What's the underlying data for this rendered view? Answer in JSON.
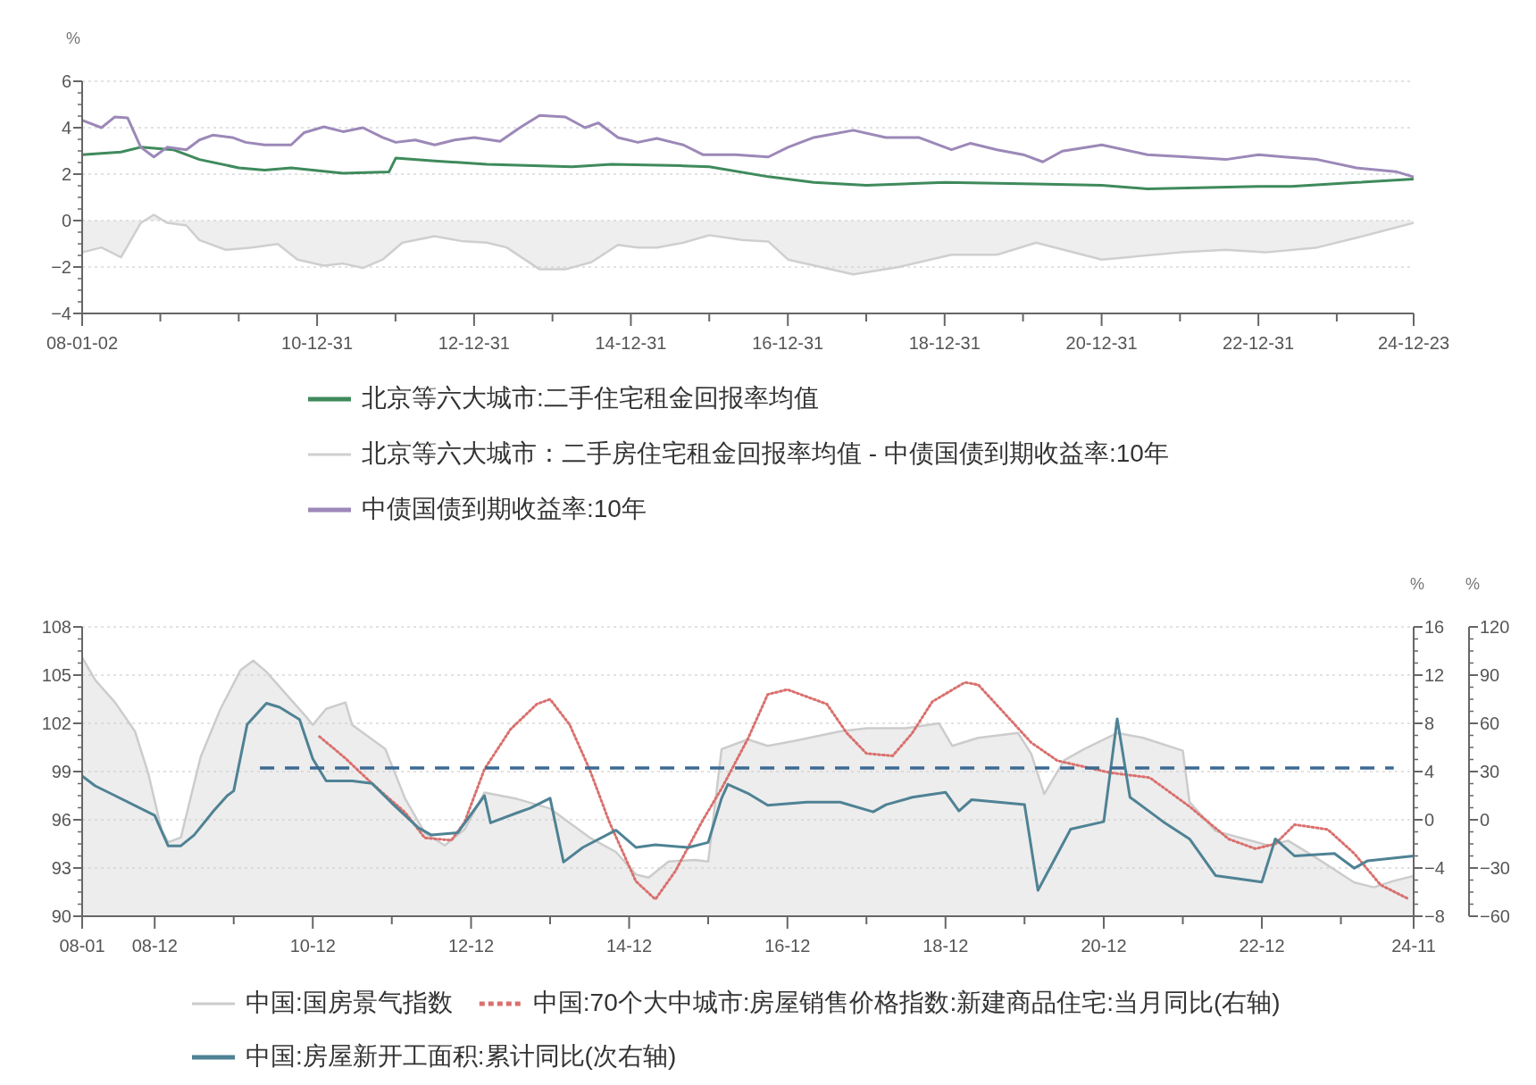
{
  "chart_data": [
    {
      "type": "line",
      "ylabel": "%",
      "xlim": [
        "2008-01-02",
        "2024-12-23"
      ],
      "xticks": [
        {
          "value": "2008-01-02",
          "label": "08-01-02"
        },
        {
          "value": "2008-12-31",
          "label": null
        },
        {
          "value": "2009-12-31",
          "label": null
        },
        {
          "value": "2010-12-31",
          "label": "10-12-31"
        },
        {
          "value": "2011-12-31",
          "label": null
        },
        {
          "value": "2012-12-31",
          "label": "12-12-31"
        },
        {
          "value": "2013-12-31",
          "label": null
        },
        {
          "value": "2014-12-31",
          "label": "14-12-31"
        },
        {
          "value": "2015-12-31",
          "label": null
        },
        {
          "value": "2016-12-31",
          "label": "16-12-31"
        },
        {
          "value": "2017-12-31",
          "label": null
        },
        {
          "value": "2018-12-31",
          "label": "18-12-31"
        },
        {
          "value": "2019-12-31",
          "label": null
        },
        {
          "value": "2020-12-31",
          "label": "20-12-31"
        },
        {
          "value": "2021-12-31",
          "label": null
        },
        {
          "value": "2022-12-31",
          "label": "22-12-31"
        },
        {
          "value": "2023-12-31",
          "label": null
        },
        {
          "value": "2024-12-23",
          "label": "24-12-23"
        }
      ],
      "ylim": [
        -4,
        6
      ],
      "yticks": [
        -4,
        -2,
        0,
        2,
        4,
        6
      ],
      "grid": "y",
      "legend": "bottom",
      "series": [
        {
          "name": "北京等六大城市:二手住宅租金回报率均值",
          "color": "#3f8a5c",
          "x": [
            "2008-01-02",
            "2008-07",
            "2008-10",
            "2009-03",
            "2009-07",
            "2010-01",
            "2010-05",
            "2010-09",
            "2011-05",
            "2011-12",
            "2012-01",
            "2012-07",
            "2013-03",
            "2014-04",
            "2014-10",
            "2015-09",
            "2016-01",
            "2016-10",
            "2017-05",
            "2018-01",
            "2019-01",
            "2020-03",
            "2021-01",
            "2021-08",
            "2023-01",
            "2023-06",
            "2024-04",
            "2024-12-23"
          ],
          "values": [
            2.84,
            2.95,
            3.16,
            3.05,
            2.63,
            2.27,
            2.17,
            2.27,
            2.04,
            2.1,
            2.69,
            2.57,
            2.42,
            2.32,
            2.42,
            2.36,
            2.32,
            1.89,
            1.64,
            1.52,
            1.64,
            1.58,
            1.52,
            1.37,
            1.47,
            1.47,
            1.64,
            1.79
          ]
        },
        {
          "name": "北京等六大城市：二手房住宅租金回报率均值 - 中债国债到期收益率:10年",
          "type": "area",
          "color": "#cfcfcf",
          "x": [
            "2008-01-02",
            "2008-04",
            "2008-07",
            "2008-10",
            "2008-12",
            "2009-02",
            "2009-05",
            "2009-07",
            "2009-11",
            "2010-03",
            "2010-07",
            "2010-10",
            "2011-02",
            "2011-05",
            "2011-08",
            "2011-11",
            "2012-02",
            "2012-07",
            "2012-11",
            "2013-03",
            "2013-06",
            "2013-11",
            "2014-03",
            "2014-07",
            "2014-11",
            "2015-02",
            "2015-05",
            "2015-09",
            "2016-01",
            "2016-06",
            "2016-10",
            "2017-01",
            "2017-11",
            "2018-06",
            "2019-02",
            "2019-09",
            "2020-03",
            "2021-01",
            "2022-01",
            "2022-08",
            "2023-02",
            "2023-10",
            "2024-04",
            "2024-12-23"
          ],
          "values": [
            -1.37,
            -1.16,
            -1.58,
            -0.1,
            0.25,
            -0.1,
            -0.21,
            -0.84,
            -1.26,
            -1.16,
            -1.01,
            -1.68,
            -1.94,
            -1.85,
            -2.04,
            -1.68,
            -0.95,
            -0.67,
            -0.88,
            -0.95,
            -1.16,
            -2.1,
            -2.1,
            -1.79,
            -1.05,
            -1.16,
            -1.16,
            -0.95,
            -0.63,
            -0.84,
            -0.9,
            -1.68,
            -2.32,
            -2.0,
            -1.47,
            -1.47,
            -0.95,
            -1.68,
            -1.37,
            -1.26,
            -1.37,
            -1.16,
            -0.74,
            -0.1
          ]
        },
        {
          "name": "中债国债到期收益率:10年",
          "color": "#9c88b8",
          "x": [
            "2008-01-02",
            "2008-04",
            "2008-06",
            "2008-08",
            "2008-10",
            "2008-12",
            "2009-02",
            "2009-05",
            "2009-07",
            "2009-09",
            "2009-12",
            "2010-02",
            "2010-05",
            "2010-09",
            "2010-11",
            "2011-02",
            "2011-05",
            "2011-08",
            "2011-11",
            "2012-01",
            "2012-04",
            "2012-07",
            "2012-10",
            "2013-01",
            "2013-05",
            "2013-08",
            "2013-11",
            "2014-03",
            "2014-06",
            "2014-08",
            "2014-11",
            "2015-02",
            "2015-05",
            "2015-09",
            "2015-12",
            "2016-05",
            "2016-10",
            "2017-01",
            "2017-05",
            "2017-11",
            "2018-04",
            "2018-09",
            "2019-02",
            "2019-05",
            "2019-09",
            "2020-01",
            "2020-04",
            "2020-07",
            "2021-01",
            "2021-08",
            "2022-02",
            "2022-08",
            "2023-01",
            "2023-05",
            "2023-10",
            "2024-04",
            "2024-10",
            "2024-12-23"
          ],
          "values": [
            4.32,
            4.0,
            4.46,
            4.42,
            3.16,
            2.74,
            3.16,
            3.05,
            3.47,
            3.68,
            3.58,
            3.37,
            3.26,
            3.26,
            3.79,
            4.04,
            3.83,
            4.0,
            3.58,
            3.37,
            3.47,
            3.26,
            3.47,
            3.58,
            3.41,
            4.0,
            4.53,
            4.46,
            4.0,
            4.21,
            3.58,
            3.37,
            3.54,
            3.26,
            2.84,
            2.84,
            2.74,
            3.16,
            3.58,
            3.89,
            3.58,
            3.58,
            3.05,
            3.33,
            3.05,
            2.84,
            2.53,
            2.99,
            3.26,
            2.84,
            2.74,
            2.63,
            2.84,
            2.74,
            2.63,
            2.27,
            2.11,
            1.88
          ]
        }
      ]
    },
    {
      "type": "line",
      "y2label": "%",
      "y3label": "%",
      "xlim": [
        "2008-01",
        "2024-11"
      ],
      "xticks": [
        {
          "value": "2008-01",
          "label": "08-01"
        },
        {
          "value": "2008-12",
          "label": "08-12"
        },
        {
          "value": "2009-12",
          "label": null
        },
        {
          "value": "2010-12",
          "label": "10-12"
        },
        {
          "value": "2011-12",
          "label": null
        },
        {
          "value": "2012-12",
          "label": "12-12"
        },
        {
          "value": "2013-12",
          "label": null
        },
        {
          "value": "2014-12",
          "label": "14-12"
        },
        {
          "value": "2015-12",
          "label": null
        },
        {
          "value": "2016-12",
          "label": "16-12"
        },
        {
          "value": "2017-12",
          "label": null
        },
        {
          "value": "2018-12",
          "label": "18-12"
        },
        {
          "value": "2019-12",
          "label": null
        },
        {
          "value": "2020-12",
          "label": "20-12"
        },
        {
          "value": "2021-12",
          "label": null
        },
        {
          "value": "2022-12",
          "label": "22-12"
        },
        {
          "value": "2023-12",
          "label": null
        },
        {
          "value": "2024-11",
          "label": "24-11"
        }
      ],
      "ylim": [
        90,
        108
      ],
      "yticks": [
        90,
        93,
        96,
        99,
        102,
        105,
        108
      ],
      "y2lim": [
        -8,
        16
      ],
      "y2ticks": [
        -8,
        -4,
        0,
        4,
        8,
        12,
        16
      ],
      "y3lim": [
        -60,
        120
      ],
      "y3ticks": [
        -60,
        -30,
        0,
        30,
        60,
        90,
        120
      ],
      "grid": "y",
      "legend": "bottom",
      "series": [
        {
          "name": "中国:国房景气指数",
          "type": "area",
          "color": "#cccccc",
          "x": [
            "2008-01",
            "2008-03",
            "2008-06",
            "2008-09",
            "2008-11",
            "2009-01",
            "2009-02",
            "2009-04",
            "2009-07",
            "2009-10",
            "2010-01",
            "2010-03",
            "2010-05",
            "2010-08",
            "2010-11",
            "2010-12",
            "2011-02",
            "2011-05",
            "2011-06",
            "2011-11",
            "2012-02",
            "2012-05",
            "2012-08",
            "2012-11",
            "2013-02",
            "2013-07",
            "2013-12",
            "2014-06",
            "2014-10",
            "2015-01",
            "2015-03",
            "2015-06",
            "2015-10",
            "2015-12",
            "2016-02",
            "2016-06",
            "2016-09",
            "2017-01",
            "2017-08",
            "2017-12",
            "2018-06",
            "2018-11",
            "2019-01",
            "2019-05",
            "2019-11",
            "2020-01",
            "2020-03",
            "2020-06",
            "2020-09",
            "2021-02",
            "2021-06",
            "2021-12",
            "2022-01",
            "2022-05",
            "2023-01",
            "2023-04",
            "2023-08",
            "2024-02",
            "2024-05",
            "2024-08",
            "2024-11"
          ],
          "values": [
            106.1,
            104.7,
            103.3,
            101.5,
            98.9,
            95.4,
            94.6,
            94.9,
            99.9,
            102.9,
            105.3,
            105.9,
            105.2,
            103.8,
            102.4,
            101.9,
            102.9,
            103.3,
            101.9,
            100.4,
            97.3,
            95.2,
            94.4,
            95.4,
            97.7,
            97.3,
            96.7,
            94.9,
            94.0,
            92.6,
            92.4,
            93.4,
            93.5,
            93.4,
            100.4,
            101.0,
            100.6,
            100.9,
            101.5,
            101.7,
            101.7,
            102.0,
            100.6,
            101.1,
            101.4,
            100.1,
            97.6,
            99.7,
            100.4,
            101.4,
            101.1,
            100.3,
            97.1,
            95.3,
            94.4,
            94.7,
            93.7,
            92.1,
            91.8,
            92.2,
            92.5
          ]
        },
        {
          "name": "中国:70个大中城市:房屋销售价格指数:新建商品住宅:当月同比(右轴)",
          "axis": "y2",
          "line_style": "dotted",
          "color": "#d9706e",
          "x": [
            "2011-01",
            "2011-05",
            "2011-09",
            "2012-02",
            "2012-05",
            "2012-09",
            "2012-11",
            "2013-02",
            "2013-06",
            "2013-10",
            "2013-12",
            "2014-03",
            "2014-06",
            "2014-09",
            "2015-01",
            "2015-04",
            "2015-07",
            "2015-11",
            "2016-02",
            "2016-06",
            "2016-09",
            "2016-12",
            "2017-06",
            "2017-09",
            "2017-12",
            "2018-04",
            "2018-07",
            "2018-10",
            "2019-03",
            "2019-05",
            "2019-09",
            "2020-01",
            "2020-05",
            "2021-01",
            "2021-07",
            "2022-01",
            "2022-07",
            "2022-11",
            "2023-02",
            "2023-05",
            "2023-10",
            "2024-02",
            "2024-06",
            "2024-10"
          ],
          "values": [
            6.9,
            5.1,
            3.0,
            0.6,
            -1.5,
            -1.7,
            -0.2,
            4.2,
            7.5,
            9.6,
            10.0,
            7.9,
            4.2,
            -0.2,
            -5.1,
            -6.6,
            -4.3,
            -0.2,
            2.6,
            6.7,
            10.4,
            10.8,
            9.6,
            7.2,
            5.5,
            5.3,
            7.2,
            9.8,
            11.4,
            11.2,
            8.8,
            6.4,
            4.9,
            3.9,
            3.5,
            1.1,
            -1.6,
            -2.4,
            -2.0,
            -0.4,
            -0.8,
            -2.8,
            -5.4,
            -6.5
          ]
        },
        {
          "name": "中国:房屋新开工面积:累计同比(次右轴)",
          "axis": "y3",
          "color": "#4f8294",
          "x": [
            "2008-01",
            "2008-03",
            "2008-06",
            "2008-12",
            "2009-02",
            "2009-04",
            "2009-06",
            "2009-09",
            "2009-11",
            "2009-12",
            "2010-02",
            "2010-05",
            "2010-07",
            "2010-10",
            "2010-12",
            "2011-02",
            "2011-06",
            "2011-09",
            "2011-12",
            "2012-04",
            "2012-06",
            "2012-10",
            "2013-02",
            "2013-03",
            "2013-07",
            "2013-09",
            "2013-12",
            "2014-02",
            "2014-05",
            "2014-10",
            "2015-01",
            "2015-04",
            "2015-09",
            "2015-12",
            "2016-02",
            "2016-03",
            "2016-06",
            "2016-09",
            "2017-03",
            "2017-08",
            "2018-01",
            "2018-03",
            "2018-07",
            "2018-12",
            "2019-02",
            "2019-04",
            "2019-12",
            "2020-02",
            "2020-07",
            "2020-12",
            "2021-02",
            "2021-04",
            "2021-09",
            "2022-01",
            "2022-05",
            "2022-12",
            "2023-02",
            "2023-05",
            "2023-11",
            "2024-02",
            "2024-04",
            "2024-11"
          ],
          "values": [
            27.2,
            21.1,
            15.0,
            2.7,
            -16.2,
            -16.2,
            -9.5,
            5.8,
            15.0,
            18.0,
            59.3,
            72.5,
            70.0,
            62.4,
            37.9,
            24.2,
            24.2,
            22.6,
            10.4,
            -4.9,
            -9.5,
            -8.0,
            15.0,
            -1.9,
            4.3,
            7.3,
            13.4,
            -26.3,
            -17.2,
            -6.5,
            -17.2,
            -15.6,
            -17.2,
            -14.1,
            13.4,
            22.0,
            16.5,
            9.0,
            11.0,
            11.0,
            4.9,
            9.4,
            14.0,
            17.1,
            5.5,
            12.5,
            9.4,
            -43.9,
            -5.8,
            -1.2,
            62.8,
            14.0,
            -1.2,
            -11.9,
            -34.7,
            -38.7,
            -11.9,
            -22.5,
            -21.0,
            -30.1,
            -25.6,
            -22.5
          ]
        },
        {
          "axis": "y2",
          "line_style": "dashed",
          "color": "#3d6a92",
          "x": [
            "2010-04",
            "2024-08"
          ],
          "values": [
            4.3,
            4.3
          ]
        }
      ]
    }
  ]
}
